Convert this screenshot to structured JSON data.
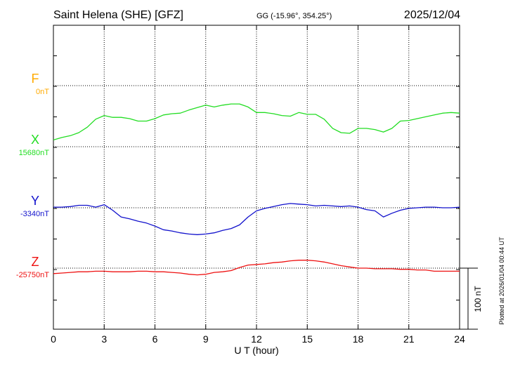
{
  "header": {
    "station": "Saint Helena (SHE)  [GFZ]",
    "coords": "GG (-15.96°, 354.25°)",
    "date": "2025/12/04"
  },
  "footer": {
    "plotted": "Plotted at 2026/01/04 00:44 UT",
    "scale_label": "100 nT"
  },
  "colors": {
    "F": "#ffaa00",
    "X": "#22dd22",
    "Y": "#1111cc",
    "Z": "#ee1111"
  },
  "chart_data": {
    "type": "line",
    "xlabel": "U T (hour)",
    "xlim": [
      0,
      24
    ],
    "x_ticks": [
      "0",
      "3",
      "6",
      "9",
      "12",
      "15",
      "18",
      "21",
      "24"
    ],
    "scale_nT": 100,
    "series": [
      {
        "name": "F",
        "baseline_label": "0nT",
        "baseline": 0,
        "x": [],
        "values": []
      },
      {
        "name": "X",
        "baseline_label": "15680nT",
        "baseline": 15680,
        "x": [
          0,
          0.5,
          1,
          1.5,
          2,
          2.5,
          3,
          3.5,
          4,
          4.5,
          5,
          5.5,
          6,
          6.5,
          7,
          7.5,
          8,
          8.5,
          9,
          9.5,
          10,
          10.5,
          11,
          11.5,
          12,
          12.5,
          13,
          13.5,
          14,
          14.5,
          15,
          15.5,
          16,
          16.5,
          17,
          17.5,
          18,
          18.5,
          19,
          19.5,
          20,
          20.5,
          21,
          21.5,
          22,
          22.5,
          23,
          23.5,
          24
        ],
        "values": [
          15691,
          15695,
          15698,
          15703,
          15712,
          15725,
          15731,
          15728,
          15728,
          15726,
          15722,
          15722,
          15726,
          15732,
          15734,
          15735,
          15740,
          15744,
          15748,
          15745,
          15748,
          15750,
          15750,
          15745,
          15736,
          15736,
          15734,
          15731,
          15730,
          15736,
          15733,
          15733,
          15725,
          15710,
          15703,
          15702,
          15710,
          15710,
          15708,
          15704,
          15710,
          15722,
          15723,
          15726,
          15729,
          15732,
          15735,
          15736,
          15735
        ]
      },
      {
        "name": "Y",
        "baseline_label": "-3340nT",
        "baseline": -3340,
        "x": [
          0,
          0.5,
          1,
          1.5,
          2,
          2.5,
          3,
          3.5,
          4,
          4.5,
          5,
          5.5,
          6,
          6.5,
          7,
          7.5,
          8,
          8.5,
          9,
          9.5,
          10,
          10.5,
          11,
          11.5,
          12,
          12.5,
          13,
          13.5,
          14,
          14.5,
          15,
          15.5,
          16,
          16.5,
          17,
          17.5,
          18,
          18.5,
          19,
          19.5,
          20,
          20.5,
          21,
          21.5,
          22,
          22.5,
          23,
          23.5,
          24
        ],
        "values": [
          -3339,
          -3339,
          -3338,
          -3336,
          -3336,
          -3339,
          -3335,
          -3344,
          -3355,
          -3358,
          -3362,
          -3365,
          -3370,
          -3376,
          -3378,
          -3381,
          -3383,
          -3384,
          -3383,
          -3381,
          -3377,
          -3374,
          -3368,
          -3355,
          -3345,
          -3341,
          -3338,
          -3335,
          -3333,
          -3334,
          -3335,
          -3337,
          -3336,
          -3337,
          -3338,
          -3337,
          -3339,
          -3343,
          -3345,
          -3355,
          -3349,
          -3344,
          -3341,
          -3340,
          -3339,
          -3339,
          -3340,
          -3340,
          -3339
        ]
      },
      {
        "name": "Z",
        "baseline_label": "-25750nT",
        "baseline": -25750,
        "x": [
          0,
          0.5,
          1,
          1.5,
          2,
          2.5,
          3,
          3.5,
          4,
          4.5,
          5,
          5.5,
          6,
          6.5,
          7,
          7.5,
          8,
          8.5,
          9,
          9.5,
          10,
          10.5,
          11,
          11.5,
          12,
          12.5,
          13,
          13.5,
          14,
          14.5,
          15,
          15.5,
          16,
          16.5,
          17,
          17.5,
          18,
          18.5,
          19,
          19.5,
          20,
          20.5,
          21,
          21.5,
          22,
          22.5,
          23,
          23.5,
          24
        ],
        "values": [
          -25759,
          -25758,
          -25757,
          -25756,
          -25756,
          -25755,
          -25755,
          -25756,
          -25756,
          -25756,
          -25755,
          -25755,
          -25756,
          -25756,
          -25757,
          -25758,
          -25760,
          -25761,
          -25760,
          -25757,
          -25756,
          -25754,
          -25749,
          -25745,
          -25744,
          -25743,
          -25741,
          -25740,
          -25738,
          -25737,
          -25737,
          -25738,
          -25740,
          -25743,
          -25746,
          -25748,
          -25750,
          -25750,
          -25751,
          -25751,
          -25751,
          -25752,
          -25752,
          -25753,
          -25753,
          -25755,
          -25755,
          -25755,
          -25755
        ]
      }
    ]
  }
}
